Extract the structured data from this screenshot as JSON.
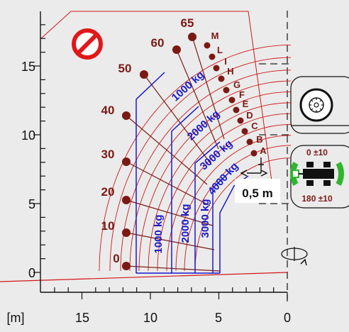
{
  "unit_label": "[m]",
  "x_axis": {
    "ticks": [
      "15",
      "10",
      "5",
      "0"
    ]
  },
  "y_axis": {
    "ticks": [
      "15",
      "10",
      "5",
      "0"
    ]
  },
  "boom_angles": [
    "0",
    "10",
    "20",
    "30",
    "40",
    "50",
    "60",
    "65"
  ],
  "extension_marks": [
    "A",
    "B",
    "C",
    "D",
    "E",
    "F",
    "G",
    "H",
    "I",
    "L",
    "M"
  ],
  "load_zones": {
    "diagonal": [
      "1000 kg",
      "2000 kg",
      "3000 kg",
      "4000 kg"
    ],
    "vertical": [
      "1000 kg",
      "2000 kg",
      "3000 kg"
    ]
  },
  "offset_label": "0,5 m",
  "stabilizer": {
    "front_label": "0 ±10",
    "rear_label": "180 ±10"
  },
  "icons": [
    "no-entry-icon",
    "tire-icon",
    "chassis-icon",
    "rotation-icon"
  ],
  "colors": {
    "background": "#ebebeb",
    "load_lines": "#1a1acc",
    "boom_points": "#7a1a14",
    "boundary": "#d01818",
    "no_entry": "#e01818",
    "stabilizer_green": "#2fb52f"
  }
}
